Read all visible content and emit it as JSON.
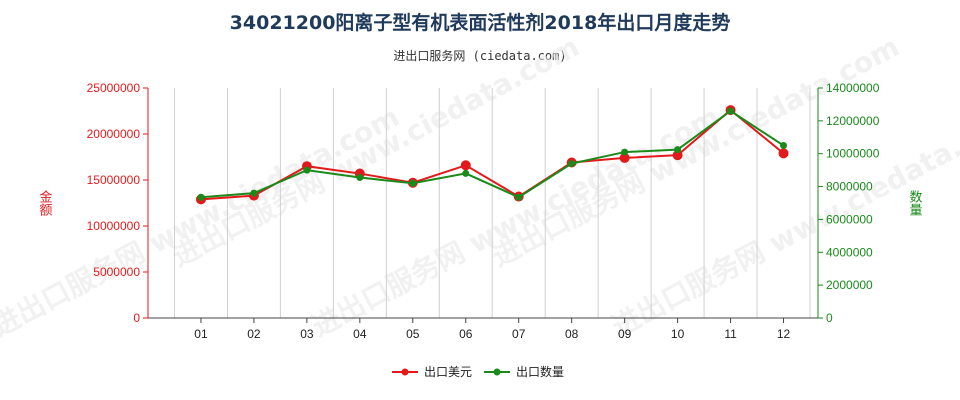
{
  "title": "34021200阳离子型有机表面活性剂2018年出口月度走势",
  "subtitle": "进出口服务网 (ciedata.com)",
  "watermark": "进出口服务网 www.ciedata.com",
  "colors": {
    "usd": "#e31a1c",
    "qty": "#1a8a1a",
    "grid": "#d0d0d0"
  },
  "chart_data": {
    "type": "line",
    "categories": [
      "01",
      "02",
      "03",
      "04",
      "05",
      "06",
      "07",
      "08",
      "09",
      "10",
      "11",
      "12"
    ],
    "y_left": {
      "label": "金额",
      "range": [
        0,
        25000000
      ],
      "ticks": [
        "0",
        "5000000",
        "10000000",
        "15000000",
        "20000000",
        "25000000"
      ]
    },
    "y_right": {
      "label": "数量",
      "range": [
        0,
        14000000
      ],
      "ticks": [
        "0",
        "2000000",
        "4000000",
        "6000000",
        "8000000",
        "10000000",
        "12000000",
        "14000000"
      ]
    },
    "series": [
      {
        "name": "出口美元",
        "axis": "left",
        "color": "#e31a1c",
        "values": [
          12900000,
          13300000,
          16500000,
          15700000,
          14700000,
          16600000,
          13200000,
          16900000,
          17400000,
          17700000,
          22600000,
          17900000
        ]
      },
      {
        "name": "出口数量",
        "axis": "right",
        "color": "#1a8a1a",
        "values": [
          7350000,
          7600000,
          9000000,
          8550000,
          8200000,
          8800000,
          7350000,
          9400000,
          10100000,
          10250000,
          12600000,
          10500000
        ]
      }
    ],
    "legend_position": "bottom-center",
    "grid": "vertical"
  }
}
